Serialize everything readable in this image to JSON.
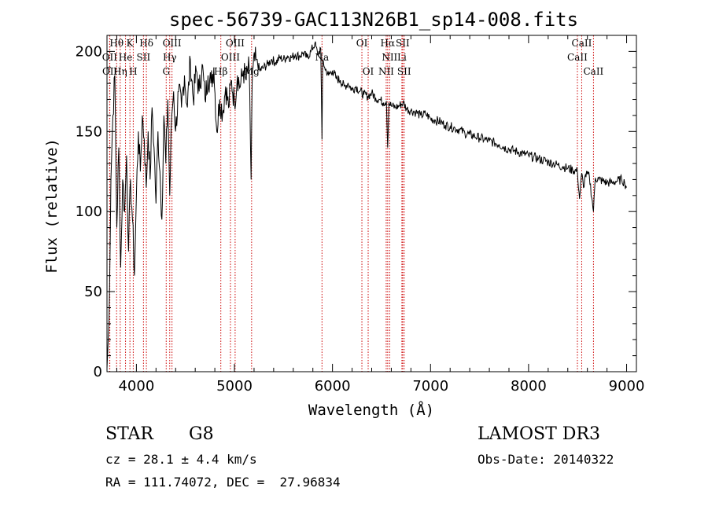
{
  "chart_data": {
    "type": "line",
    "title": "spec-56739-GAC113N26B1_sp14-008.fits",
    "xlabel": "Wavelength (Å)",
    "ylabel": "Flux (relative)",
    "xlim": [
      3700,
      9100
    ],
    "ylim": [
      0,
      210
    ],
    "xticks": [
      4000,
      5000,
      6000,
      7000,
      8000,
      9000
    ],
    "yticks": [
      0,
      50,
      100,
      150,
      200
    ],
    "grid": false,
    "series": [
      {
        "name": "flux",
        "x": [
          3700,
          3720,
          3740,
          3760,
          3780,
          3800,
          3820,
          3840,
          3860,
          3880,
          3900,
          3920,
          3940,
          3960,
          3980,
          4000,
          4020,
          4040,
          4060,
          4080,
          4100,
          4120,
          4140,
          4160,
          4180,
          4200,
          4220,
          4240,
          4260,
          4280,
          4300,
          4320,
          4340,
          4360,
          4380,
          4400,
          4430,
          4460,
          4490,
          4520,
          4550,
          4580,
          4610,
          4640,
          4670,
          4700,
          4730,
          4760,
          4790,
          4820,
          4850,
          4880,
          4910,
          4940,
          4970,
          5000,
          5030,
          5060,
          5090,
          5120,
          5150,
          5170,
          5180,
          5190,
          5220,
          5260,
          5300,
          5340,
          5380,
          5420,
          5460,
          5500,
          5540,
          5580,
          5620,
          5660,
          5700,
          5740,
          5780,
          5820,
          5850,
          5880,
          5893,
          5900,
          5920,
          5960,
          6000,
          6040,
          6080,
          6120,
          6160,
          6200,
          6240,
          6280,
          6320,
          6360,
          6400,
          6440,
          6480,
          6520,
          6550,
          6563,
          6575,
          6600,
          6640,
          6680,
          6720,
          6760,
          6800,
          6850,
          6900,
          6950,
          7000,
          7050,
          7100,
          7150,
          7200,
          7250,
          7300,
          7350,
          7400,
          7450,
          7500,
          7550,
          7600,
          7650,
          7700,
          7750,
          7800,
          7850,
          7900,
          7950,
          8000,
          8050,
          8100,
          8150,
          8200,
          8250,
          8300,
          8350,
          8400,
          8450,
          8498,
          8520,
          8542,
          8560,
          8580,
          8620,
          8662,
          8680,
          8720,
          8760,
          8800,
          8850,
          8900,
          8950,
          8980,
          9000
        ],
        "values": [
          2,
          30,
          120,
          160,
          185,
          90,
          140,
          65,
          120,
          100,
          135,
          75,
          120,
          95,
          60,
          110,
          150,
          125,
          160,
          145,
          115,
          150,
          120,
          165,
          140,
          105,
          150,
          125,
          95,
          160,
          130,
          170,
          110,
          160,
          175,
          150,
          175,
          165,
          185,
          165,
          195,
          170,
          188,
          175,
          192,
          170,
          185,
          180,
          190,
          150,
          170,
          162,
          178,
          165,
          182,
          168,
          185,
          178,
          188,
          182,
          190,
          120,
          180,
          190,
          195,
          188,
          190,
          192,
          195,
          193,
          196,
          195,
          197,
          196,
          198,
          197,
          199,
          196,
          200,
          205,
          198,
          202,
          145,
          195,
          190,
          185,
          188,
          183,
          182,
          178,
          180,
          176,
          178,
          175,
          173,
          172,
          174,
          171,
          170,
          168,
          169,
          140,
          168,
          166,
          165,
          166,
          168,
          164,
          163,
          162,
          160,
          161,
          158,
          157,
          156,
          154,
          153,
          152,
          151,
          149,
          148,
          147,
          146,
          145,
          144,
          143,
          142,
          140,
          139,
          138,
          137,
          136,
          135,
          134,
          133,
          132,
          131,
          130,
          129,
          128,
          127,
          126,
          125,
          108,
          124,
          115,
          123,
          122,
          100,
          121,
          120,
          119,
          118,
          118,
          119,
          120,
          118,
          115
        ]
      }
    ],
    "spectral_lines": [
      {
        "name": "Hδ",
        "wavelength": 4102,
        "row": 0
      },
      {
        "name": "K",
        "wavelength": 3934,
        "row": 0
      },
      {
        "name": "Hθ",
        "wavelength": 3798,
        "row": 0
      },
      {
        "name": "OIII",
        "wavelength": 4363,
        "row": 0
      },
      {
        "name": "OIII",
        "wavelength": 5007,
        "row": 0
      },
      {
        "name": "OI",
        "wavelength": 6300,
        "row": 0
      },
      {
        "name": "Hα",
        "wavelength": 6563,
        "row": 0
      },
      {
        "name": "SII",
        "wavelength": 6716,
        "row": 0
      },
      {
        "name": "CaII",
        "wavelength": 8542,
        "row": 0
      },
      {
        "name": "OII",
        "wavelength": 3727,
        "row": 1
      },
      {
        "name": "He",
        "wavelength": 3889,
        "row": 1
      },
      {
        "name": "SII",
        "wavelength": 4072,
        "row": 1
      },
      {
        "name": "Hγ",
        "wavelength": 4340,
        "row": 1
      },
      {
        "name": "OIII",
        "wavelength": 4959,
        "row": 1
      },
      {
        "name": "Na",
        "wavelength": 5893,
        "row": 1
      },
      {
        "name": "NII",
        "wavelength": 6583,
        "row": 1
      },
      {
        "name": "Li",
        "wavelength": 6708,
        "row": 1
      },
      {
        "name": "CaII",
        "wavelength": 8498,
        "row": 1
      },
      {
        "name": "OII",
        "wavelength": 3729,
        "row": 2
      },
      {
        "name": "Hη",
        "wavelength": 3835,
        "row": 2
      },
      {
        "name": "H",
        "wavelength": 3968,
        "row": 2
      },
      {
        "name": "G",
        "wavelength": 4304,
        "row": 2
      },
      {
        "name": "Hβ",
        "wavelength": 4861,
        "row": 2
      },
      {
        "name": "Mg",
        "wavelength": 5175,
        "row": 2
      },
      {
        "name": "OI",
        "wavelength": 6364,
        "row": 2
      },
      {
        "name": "NII",
        "wavelength": 6548,
        "row": 2
      },
      {
        "name": "SII",
        "wavelength": 6731,
        "row": 2
      },
      {
        "name": "CaII",
        "wavelength": 8662,
        "row": 2
      }
    ]
  },
  "info": {
    "object_type": "STAR",
    "subclass": "G8",
    "survey": "LAMOST DR3",
    "cz": "cz = 28.1 ± 4.4 km/s",
    "obs_date": "Obs-Date: 20140322",
    "coords": "RA = 111.74072, DEC =  27.96834"
  },
  "colors": {
    "line": "#000000",
    "marker": "#cc0000"
  }
}
